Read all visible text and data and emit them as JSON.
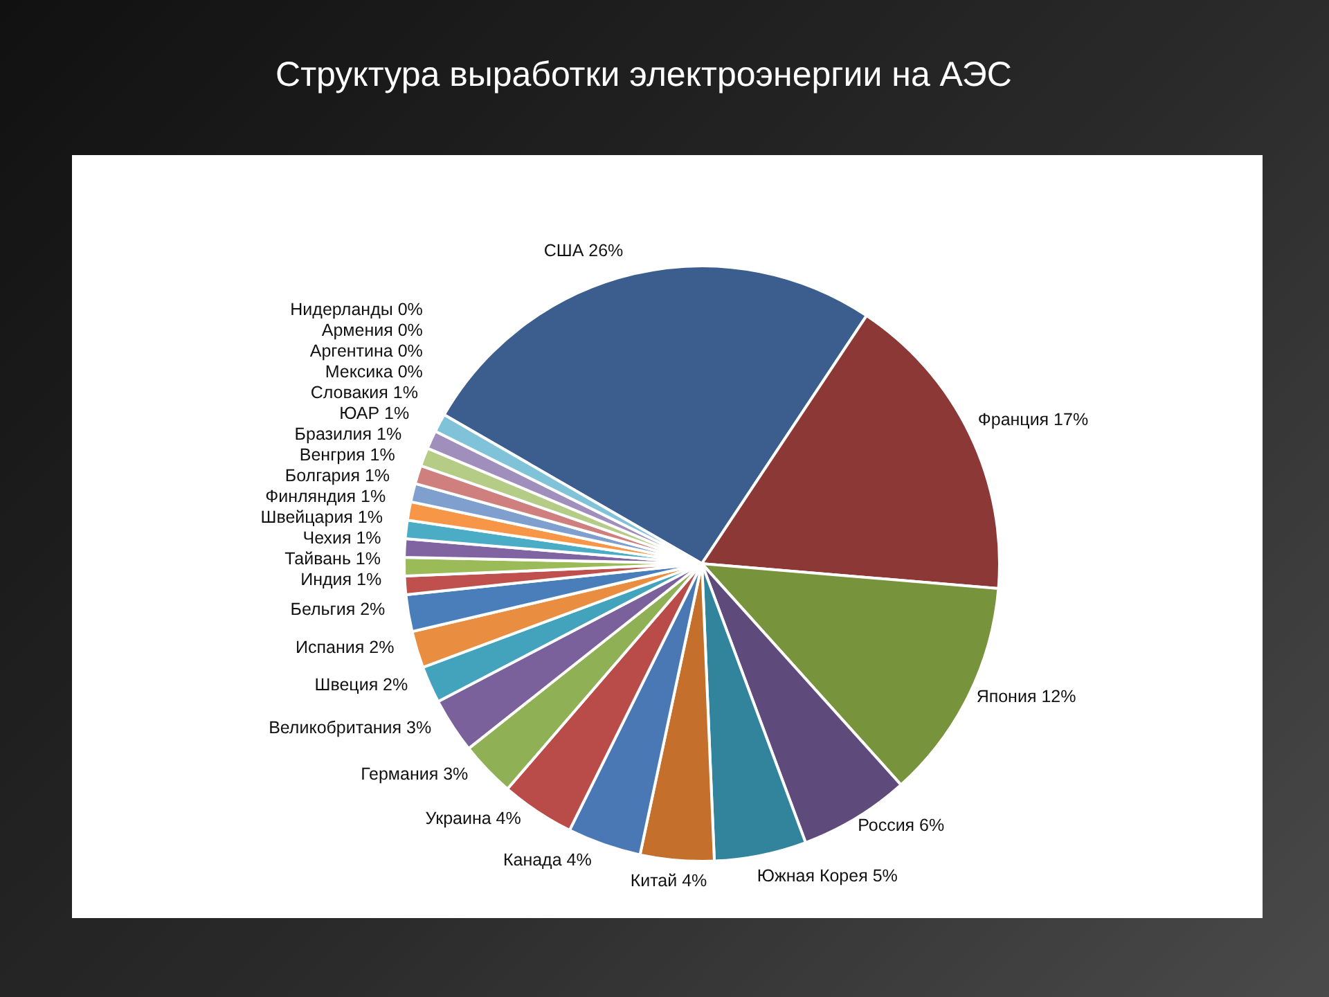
{
  "chart_data": {
    "type": "pie",
    "title": "Структура выработки электроэнергии на АЭС",
    "categories": [
      "США",
      "Франция",
      "Япония",
      "Россия",
      "Южная Корея",
      "Китай",
      "Канада",
      "Украина",
      "Германия",
      "Великобритания",
      "Швеция",
      "Испания",
      "Бельгия",
      "Индия",
      "Тайвань",
      "Чехия",
      "Швейцария",
      "Финляндия",
      "Болгария",
      "Венгрия",
      "Бразилия",
      "ЮАР",
      "Словакия",
      "Мексика",
      "Аргентина",
      "Армения",
      "Нидерланды"
    ],
    "values": [
      26,
      17,
      12,
      6,
      5,
      4,
      4,
      4,
      3,
      3,
      2,
      2,
      2,
      1,
      1,
      1,
      1,
      1,
      1,
      1,
      1,
      1,
      1,
      0,
      0,
      0,
      0
    ],
    "value_labels": [
      "26%",
      "17%",
      "12%",
      "6%",
      "5%",
      "4%",
      "4%",
      "4%",
      "3%",
      "3%",
      "2%",
      "2%",
      "2%",
      "1%",
      "1%",
      "1%",
      "1%",
      "1%",
      "1%",
      "1%",
      "1%",
      "1%",
      "1%",
      "0%",
      "0%",
      "0%",
      "0%"
    ],
    "colors": [
      "#3b5e8f",
      "#8c3836",
      "#77933c",
      "#5f4a7c",
      "#31849b",
      "#c46f2b",
      "#4a78b4",
      "#b94b48",
      "#8fb054",
      "#7a619c",
      "#43a3bd",
      "#e98e40",
      "#4a7ebb",
      "#c0504d",
      "#9bbb59",
      "#8064a2",
      "#4bacc6",
      "#f79646",
      "#7f9fcf",
      "#cf7f7d",
      "#b4cc86",
      "#a08fbd",
      "#80c3d8",
      "#f9b57d",
      "#a6bde0",
      "#d9a5a4",
      "#c9dbaa"
    ]
  }
}
